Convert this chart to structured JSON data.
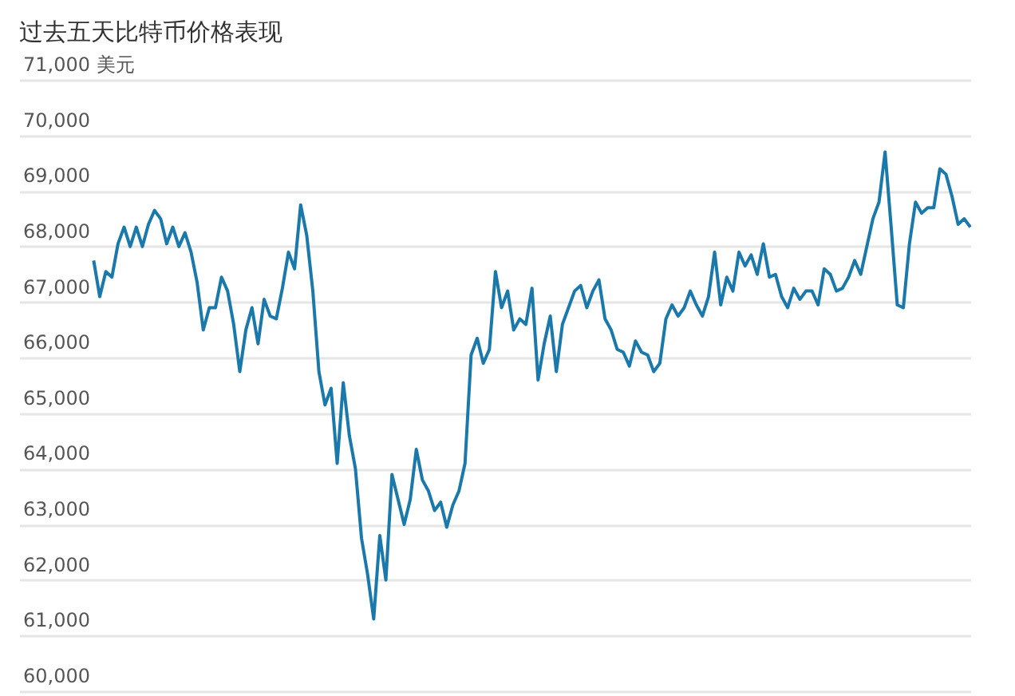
{
  "chart_data": {
    "type": "line",
    "title": "过去五天比特币价格表现",
    "categories": [
      null,
      null,
      null,
      null,
      null,
      null,
      null,
      null,
      null,
      null,
      null,
      null,
      null,
      null,
      null,
      null,
      null,
      null,
      null,
      null,
      null,
      null,
      null,
      null,
      null,
      null,
      null,
      null,
      null,
      null,
      null,
      null,
      null,
      null,
      null,
      null,
      null,
      null,
      null,
      null,
      null,
      null,
      null,
      null,
      null,
      null,
      null,
      null,
      null,
      null,
      null,
      null,
      null,
      null,
      null,
      null,
      null,
      null,
      null,
      null,
      null,
      null,
      null,
      null,
      null,
      null,
      null,
      null,
      null,
      null,
      null,
      null,
      null,
      null,
      null,
      null,
      null,
      null,
      null,
      null,
      null,
      null,
      null,
      null,
      null,
      null,
      null,
      null,
      null,
      null,
      null,
      null,
      null,
      null,
      null,
      null,
      null,
      null,
      null,
      null,
      null,
      null,
      null,
      null,
      null,
      null,
      null,
      null,
      null,
      null,
      null,
      null,
      null,
      null,
      null,
      null,
      null,
      null,
      null,
      null,
      null,
      null,
      null,
      null,
      null,
      null,
      null,
      null,
      null,
      null,
      null,
      null,
      null,
      null,
      null,
      null,
      null,
      null,
      null,
      null,
      null,
      null,
      null,
      null,
      null
    ],
    "series": [
      {
        "color": "#1a78ab",
        "values": [
          67750,
          67100,
          67550,
          67450,
          68050,
          68350,
          68000,
          68350,
          68000,
          68400,
          68650,
          68500,
          68050,
          68350,
          68000,
          68250,
          67900,
          67350,
          66500,
          66900,
          66900,
          67450,
          67200,
          66600,
          65750,
          66500,
          66900,
          66250,
          67050,
          66750,
          66700,
          67250,
          67900,
          67600,
          68750,
          68200,
          67200,
          65750,
          65150,
          65450,
          64100,
          65550,
          64600,
          64000,
          62750,
          62100,
          61300,
          62800,
          62000,
          63900,
          63450,
          63000,
          63450,
          64350,
          63800,
          63600,
          63250,
          63400,
          62950,
          63350,
          63600,
          64100,
          66050,
          66350,
          65900,
          66150,
          67550,
          66900,
          67200,
          66500,
          66700,
          66600,
          67250,
          65600,
          66250,
          66750,
          65750,
          66600,
          66900,
          67200,
          67300,
          66900,
          67200,
          67400,
          66700,
          66500,
          66150,
          66100,
          65850,
          66300,
          66100,
          66050,
          65750,
          65900,
          66700,
          66950,
          66750,
          66900,
          67200,
          66950,
          66750,
          67100,
          67900,
          66950,
          67450,
          67200,
          67900,
          67650,
          67850,
          67500,
          68050,
          67450,
          67500,
          67100,
          66900,
          67250,
          67050,
          67200,
          67200,
          66950,
          67600,
          67500,
          67200,
          67250,
          67450,
          67750,
          67500,
          68000,
          68500,
          68800,
          69700,
          68350,
          66950,
          66900,
          68050,
          68800,
          68600,
          68700,
          68700,
          69400,
          69300,
          68900,
          68400,
          68500,
          68350
        ]
      }
    ],
    "ylim": [
      60000,
      71000
    ],
    "yticks": [
      {
        "value": 60000,
        "label": "60,000"
      },
      {
        "value": 61000,
        "label": "61,000"
      },
      {
        "value": 62000,
        "label": "62,000"
      },
      {
        "value": 63000,
        "label": "63,000"
      },
      {
        "value": 64000,
        "label": "64,000"
      },
      {
        "value": 65000,
        "label": "65,000"
      },
      {
        "value": 66000,
        "label": "66,000"
      },
      {
        "value": 67000,
        "label": "67,000"
      },
      {
        "value": 68000,
        "label": "68,000"
      },
      {
        "value": 69000,
        "label": "69,000"
      },
      {
        "value": 70000,
        "label": "70,000"
      },
      {
        "value": 71000,
        "label": "71,000 美元"
      }
    ],
    "grid": true
  }
}
